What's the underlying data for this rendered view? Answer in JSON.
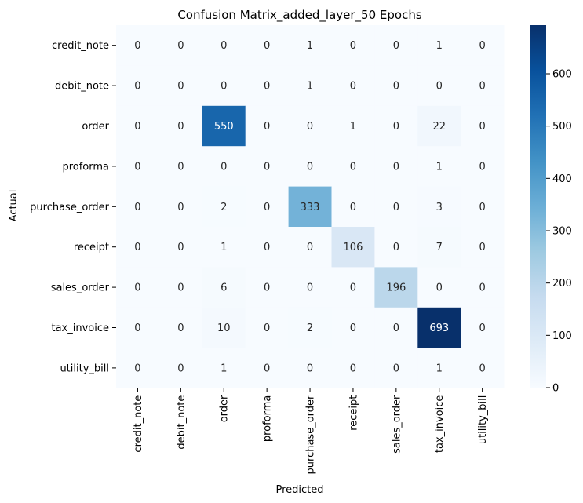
{
  "chart_data": {
    "type": "heatmap",
    "title": "Confusion Matrix_added_layer_50 Epochs",
    "xlabel": "Predicted",
    "ylabel": "Actual",
    "x_categories": [
      "credit_note",
      "debit_note",
      "order",
      "proforma",
      "purchase_order",
      "receipt",
      "sales_order",
      "tax_invoice",
      "utility_bill"
    ],
    "y_categories": [
      "credit_note",
      "debit_note",
      "order",
      "proforma",
      "purchase_order",
      "receipt",
      "sales_order",
      "tax_invoice",
      "utility_bill"
    ],
    "values": [
      [
        0,
        0,
        0,
        0,
        1,
        0,
        0,
        1,
        0
      ],
      [
        0,
        0,
        0,
        0,
        1,
        0,
        0,
        0,
        0
      ],
      [
        0,
        0,
        550,
        0,
        0,
        1,
        0,
        22,
        0
      ],
      [
        0,
        0,
        0,
        0,
        0,
        0,
        0,
        1,
        0
      ],
      [
        0,
        0,
        2,
        0,
        333,
        0,
        0,
        3,
        0
      ],
      [
        0,
        0,
        1,
        0,
        0,
        106,
        0,
        7,
        0
      ],
      [
        0,
        0,
        6,
        0,
        0,
        0,
        196,
        0,
        0
      ],
      [
        0,
        0,
        10,
        0,
        2,
        0,
        0,
        693,
        0
      ],
      [
        0,
        0,
        1,
        0,
        0,
        0,
        0,
        1,
        0
      ]
    ],
    "colormap": "Blues",
    "colorbar": {
      "range": [
        0,
        693
      ],
      "ticks": [
        0,
        100,
        200,
        300,
        400,
        500,
        600
      ]
    }
  }
}
